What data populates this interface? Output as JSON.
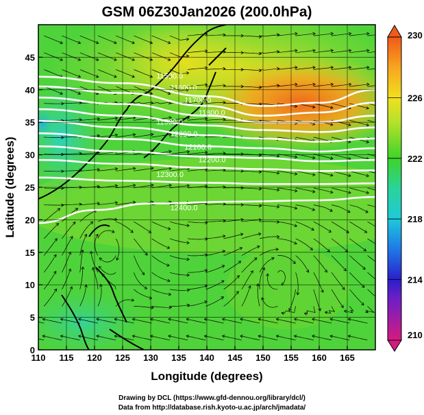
{
  "title": "GSM 06Z30Jan2026 (200.0hPa)",
  "x_axis": {
    "label": "Longitude (degrees)",
    "ticks": [
      "110",
      "115",
      "120",
      "125",
      "130",
      "135",
      "140",
      "145",
      "150",
      "155",
      "160",
      "165"
    ]
  },
  "y_axis": {
    "label": "Latitude  (degrees)",
    "ticks": [
      "0",
      "5",
      "10",
      "15",
      "20",
      "25",
      "30",
      "35",
      "40",
      "45"
    ]
  },
  "colorbar": {
    "labels": [
      "230",
      "226",
      "222",
      "218",
      "214",
      "210"
    ],
    "colors": [
      "#d71a7f",
      "#2b1fc9",
      "#1fa6e9",
      "#2ad3a9",
      "#6ed32a",
      "#e0e72a",
      "#f7a51f",
      "#f05a1a"
    ]
  },
  "credits": {
    "line1": "Drawing by DCL (https://www.gfd-dennou.org/library/dcl/)",
    "line2": "Data from http://database.rish.kyoto-u.ac.jp/arch/jmadata/"
  },
  "chart_data": {
    "type": "heatmap",
    "title": "GSM 06Z30Jan2026 (200.0hPa)",
    "xlabel": "Longitude (degrees)",
    "ylabel": "Latitude  (degrees)",
    "xlim": [
      110,
      170
    ],
    "ylim": [
      0,
      50
    ],
    "field": "temperature (K) shaded, geopotential height contours, wind streamlines",
    "color_range": [
      210,
      230
    ],
    "colorbar_ticks": [
      210,
      214,
      218,
      222,
      226,
      230
    ],
    "contours": [
      {
        "label": "11500.0",
        "values": [
          {
            "lon": 110,
            "lat": 42.0
          },
          {
            "lon": 125,
            "lat": 41.0
          },
          {
            "lon": 140,
            "lat": 39.0
          },
          {
            "lon": 150,
            "lat": 37.5
          },
          {
            "lon": 160,
            "lat": 38.0
          },
          {
            "lon": 170,
            "lat": 40.0
          }
        ]
      },
      {
        "label": "11600.0",
        "values": [
          {
            "lon": 110,
            "lat": 40.5
          },
          {
            "lon": 125,
            "lat": 39.5
          },
          {
            "lon": 140,
            "lat": 37.5
          },
          {
            "lon": 150,
            "lat": 36.0
          },
          {
            "lon": 160,
            "lat": 36.5
          },
          {
            "lon": 170,
            "lat": 38.0
          }
        ]
      },
      {
        "label": "11700.0",
        "values": [
          {
            "lon": 110,
            "lat": 38.8
          },
          {
            "lon": 125,
            "lat": 37.8
          },
          {
            "lon": 140,
            "lat": 36.0
          },
          {
            "lon": 150,
            "lat": 35.0
          },
          {
            "lon": 160,
            "lat": 35.0
          },
          {
            "lon": 170,
            "lat": 36.0
          }
        ]
      },
      {
        "label": "11800.0",
        "values": [
          {
            "lon": 110,
            "lat": 37.0
          },
          {
            "lon": 125,
            "lat": 36.0
          },
          {
            "lon": 140,
            "lat": 34.5
          },
          {
            "lon": 150,
            "lat": 33.8
          },
          {
            "lon": 160,
            "lat": 33.5
          },
          {
            "lon": 170,
            "lat": 34.2
          }
        ]
      },
      {
        "label": "11900.0",
        "values": [
          {
            "lon": 110,
            "lat": 35.2
          },
          {
            "lon": 125,
            "lat": 34.2
          },
          {
            "lon": 140,
            "lat": 33.0
          },
          {
            "lon": 150,
            "lat": 32.5
          },
          {
            "lon": 160,
            "lat": 32.0
          },
          {
            "lon": 170,
            "lat": 32.5
          }
        ]
      },
      {
        "label": "12000.0",
        "values": [
          {
            "lon": 110,
            "lat": 33.3
          },
          {
            "lon": 125,
            "lat": 32.4
          },
          {
            "lon": 140,
            "lat": 31.3
          },
          {
            "lon": 150,
            "lat": 31.0
          },
          {
            "lon": 160,
            "lat": 30.5
          },
          {
            "lon": 170,
            "lat": 31.0
          }
        ]
      },
      {
        "label": "12100.0",
        "values": [
          {
            "lon": 110,
            "lat": 31.3
          },
          {
            "lon": 125,
            "lat": 30.5
          },
          {
            "lon": 140,
            "lat": 29.7
          },
          {
            "lon": 150,
            "lat": 29.5
          },
          {
            "lon": 160,
            "lat": 29.0
          },
          {
            "lon": 170,
            "lat": 29.2
          }
        ]
      },
      {
        "label": "12200.0",
        "values": [
          {
            "lon": 110,
            "lat": 29.2
          },
          {
            "lon": 125,
            "lat": 28.6
          },
          {
            "lon": 140,
            "lat": 28.0
          },
          {
            "lon": 150,
            "lat": 27.8
          },
          {
            "lon": 160,
            "lat": 27.5
          },
          {
            "lon": 170,
            "lat": 27.6
          }
        ]
      },
      {
        "label": "12300.0",
        "values": [
          {
            "lon": 110,
            "lat": 26.5
          },
          {
            "lon": 125,
            "lat": 26.0
          },
          {
            "lon": 140,
            "lat": 25.7
          },
          {
            "lon": 150,
            "lat": 25.5
          },
          {
            "lon": 160,
            "lat": 25.5
          },
          {
            "lon": 170,
            "lat": 25.6
          }
        ]
      },
      {
        "label": "12400.0",
        "values": [
          {
            "lon": 110,
            "lat": 19.5
          },
          {
            "lon": 120,
            "lat": 21.5
          },
          {
            "lon": 130,
            "lat": 22.5
          },
          {
            "lon": 145,
            "lat": 22.8
          },
          {
            "lon": 160,
            "lat": 23.0
          },
          {
            "lon": 170,
            "lat": 23.5
          }
        ]
      }
    ],
    "temperature_regions": [
      {
        "label": "warm maximum",
        "lon": 157,
        "lat": 42,
        "value": 228
      },
      {
        "label": "cold minimum",
        "lon": 110,
        "lat": 36,
        "value": 219
      },
      {
        "label": "tropical",
        "lon": 140,
        "lat": 10,
        "value": 222
      }
    ],
    "vortices": [
      {
        "lon": 153,
        "lat": 12,
        "sense": "anticyclonic"
      },
      {
        "lon": 122,
        "lat": 17,
        "sense": "anticyclonic"
      }
    ]
  }
}
